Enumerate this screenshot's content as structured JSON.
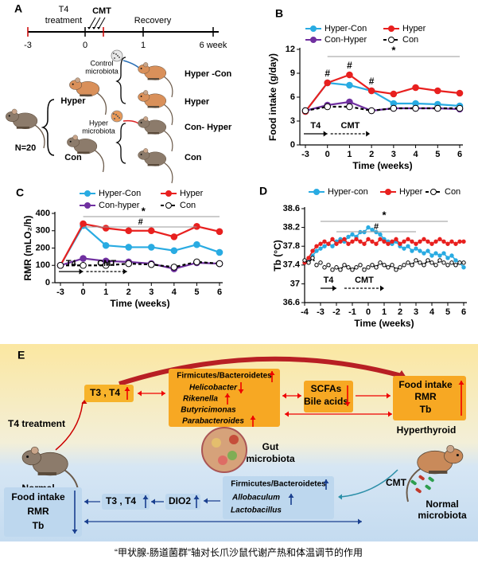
{
  "panel_a": {
    "label": "A",
    "treatment": [
      "T4",
      "treatment"
    ],
    "cmt": "CMT",
    "recovery": "Recovery",
    "timeline_ticks": [
      "-3",
      "0",
      "1",
      "6 week"
    ],
    "n": "N=20",
    "groups": [
      "Hyper",
      "Con"
    ],
    "microbiota": [
      [
        "Control",
        "microbiota"
      ],
      [
        "Hyper",
        "microbiota"
      ]
    ],
    "outcomes": [
      "Hyper -Con",
      "Hyper",
      "Con- Hyper",
      "Con"
    ]
  },
  "chart_data": [
    {
      "type": "line",
      "panel_label": "B",
      "ylabel": "Food intake (g/day)",
      "xlabel": "Time (weeks)",
      "categories": [
        "-3",
        "0",
        "1",
        "2",
        "3",
        "4",
        "5",
        "6"
      ],
      "ylim": [
        0,
        12
      ],
      "yticks": [
        0,
        3,
        6,
        9,
        12
      ],
      "annotations": [
        "#",
        "*"
      ],
      "treatments": [
        "T4",
        "CMT"
      ],
      "series": [
        {
          "name": "Hyper-Con",
          "color": "#29abe2",
          "values": [
            4.2,
            7.8,
            7.5,
            6.8,
            5.2,
            5.2,
            5.1,
            4.9
          ]
        },
        {
          "name": "Hyper",
          "color": "#e8201f",
          "values": [
            4.2,
            7.8,
            8.8,
            6.8,
            6.4,
            7.2,
            6.8,
            6.5
          ]
        },
        {
          "name": "Con-Hyper",
          "color": "#7030a0",
          "values": [
            4.3,
            5.0,
            5.4,
            4.3,
            4.6,
            4.6,
            4.6,
            4.5
          ]
        },
        {
          "name": "Con",
          "color": "#000000",
          "line_style": "dashed",
          "marker": "open",
          "values": [
            4.3,
            4.8,
            4.8,
            4.3,
            4.6,
            4.6,
            4.6,
            4.6
          ]
        }
      ]
    },
    {
      "type": "line",
      "panel_label": "C",
      "ylabel": "RMR (mLO₂/h)",
      "xlabel": "Time (weeks)",
      "categories": [
        "-3",
        "0",
        "1",
        "2",
        "3",
        "4",
        "5",
        "6"
      ],
      "ylim": [
        0,
        400
      ],
      "yticks": [
        0,
        100,
        200,
        300,
        400
      ],
      "annotations": [
        "#",
        "*"
      ],
      "treatments": [
        "T4",
        "CMT"
      ],
      "series": [
        {
          "name": "Hyper-Con",
          "color": "#29abe2",
          "values": [
            100,
            330,
            215,
            205,
            205,
            185,
            220,
            175
          ]
        },
        {
          "name": "Hyper",
          "color": "#e8201f",
          "values": [
            100,
            340,
            315,
            300,
            300,
            265,
            325,
            295
          ]
        },
        {
          "name": "Con-hyper",
          "color": "#7030a0",
          "values": [
            100,
            140,
            125,
            120,
            110,
            80,
            115,
            110
          ]
        },
        {
          "name": "Con",
          "color": "#000000",
          "line_style": "dashed",
          "marker": "open",
          "values": [
            100,
            100,
            100,
            110,
            105,
            90,
            120,
            110
          ]
        }
      ]
    },
    {
      "type": "line",
      "panel_label": "D",
      "ylabel": "Tb (°C)",
      "xlabel": "Time (weeks)",
      "x": [
        -4,
        -3.75,
        -3.5,
        -3.25,
        -3,
        -2.75,
        -2.5,
        -2.25,
        -2,
        -1.75,
        -1.5,
        -1.25,
        -1,
        -0.75,
        -0.5,
        -0.25,
        0,
        0.25,
        0.5,
        0.75,
        1,
        1.25,
        1.5,
        1.75,
        2,
        2.25,
        2.5,
        2.75,
        3,
        3.25,
        3.5,
        3.75,
        4,
        4.25,
        4.5,
        4.75,
        5,
        5.25,
        5.5,
        5.75,
        6
      ],
      "xlim": [
        -4,
        6
      ],
      "xticks": [
        -4,
        -3,
        -2,
        -1,
        0,
        1,
        2,
        3,
        4,
        5,
        6
      ],
      "ylim": [
        36.6,
        38.6
      ],
      "yticks": [
        36.6,
        37,
        37.4,
        37.8,
        38.2,
        38.6
      ],
      "annotations": [
        "#",
        "*"
      ],
      "treatments": [
        "T4",
        "CMT"
      ],
      "series": [
        {
          "name": "Hyper-con",
          "color": "#29abe2",
          "values": [
            37.45,
            37.5,
            37.6,
            37.7,
            37.75,
            37.8,
            37.85,
            37.8,
            37.9,
            37.95,
            37.9,
            38.0,
            38.05,
            38.0,
            38.1,
            38.1,
            38.2,
            38.15,
            38.1,
            38.05,
            37.95,
            37.9,
            37.85,
            37.9,
            37.8,
            37.75,
            37.8,
            37.7,
            37.75,
            37.7,
            37.65,
            37.7,
            37.6,
            37.65,
            37.6,
            37.65,
            37.55,
            37.6,
            37.5,
            37.45,
            37.35
          ]
        },
        {
          "name": "Hyper",
          "color": "#e8201f",
          "values": [
            37.45,
            37.55,
            37.7,
            37.8,
            37.85,
            37.9,
            37.85,
            37.95,
            37.85,
            37.9,
            37.95,
            37.85,
            37.9,
            37.95,
            37.9,
            37.85,
            37.95,
            37.9,
            37.85,
            37.95,
            37.9,
            37.85,
            37.9,
            37.95,
            37.85,
            37.9,
            37.95,
            37.9,
            37.85,
            37.9,
            37.95,
            37.9,
            37.85,
            37.9,
            37.95,
            37.9,
            37.85,
            37.9,
            37.85,
            37.9,
            37.9
          ]
        },
        {
          "name": "Con",
          "color": "#000000",
          "line_style": "dashed",
          "marker": "open",
          "values": [
            37.5,
            37.45,
            37.55,
            37.4,
            37.45,
            37.35,
            37.4,
            37.3,
            37.35,
            37.3,
            37.4,
            37.35,
            37.3,
            37.35,
            37.4,
            37.3,
            37.35,
            37.4,
            37.35,
            37.45,
            37.4,
            37.35,
            37.4,
            37.3,
            37.35,
            37.4,
            37.45,
            37.4,
            37.5,
            37.45,
            37.4,
            37.5,
            37.45,
            37.4,
            37.5,
            37.45,
            37.4,
            37.45,
            37.4,
            37.45,
            37.45
          ]
        }
      ]
    }
  ],
  "panel_e": {
    "label": "E",
    "t3t4_top": "T3 , T4",
    "t4_treatment": "T4 treatment",
    "normal": "Normal",
    "bacteria_top": [
      "Firmicutes/Bacteroidetes",
      "Helicobacter",
      "Rikenella",
      "Butyricimonas",
      "Parabacteroides"
    ],
    "metabolites": [
      "SCFAs",
      "Bile acids"
    ],
    "phenotype_top": [
      "Food intake",
      "RMR",
      "Tb"
    ],
    "hyperthyroid": "Hyperthyroid",
    "gut": [
      "Gut",
      "microbiota"
    ],
    "cmt": "CMT",
    "normal_microbiota": [
      "Normal",
      "microbiota"
    ],
    "bacteria_bottom": [
      "Firmicutes/Bacteroidetes",
      "Allobaculum",
      "Lactobacillus"
    ],
    "dio2": "DIO2",
    "t3t4_bottom": "T3 , T4",
    "phenotype_bottom": [
      "Food intake",
      "RMR",
      "Tb"
    ]
  },
  "caption": "“甲状腺-肠道菌群”轴对长爪沙鼠代谢产热和体温调节的作用"
}
